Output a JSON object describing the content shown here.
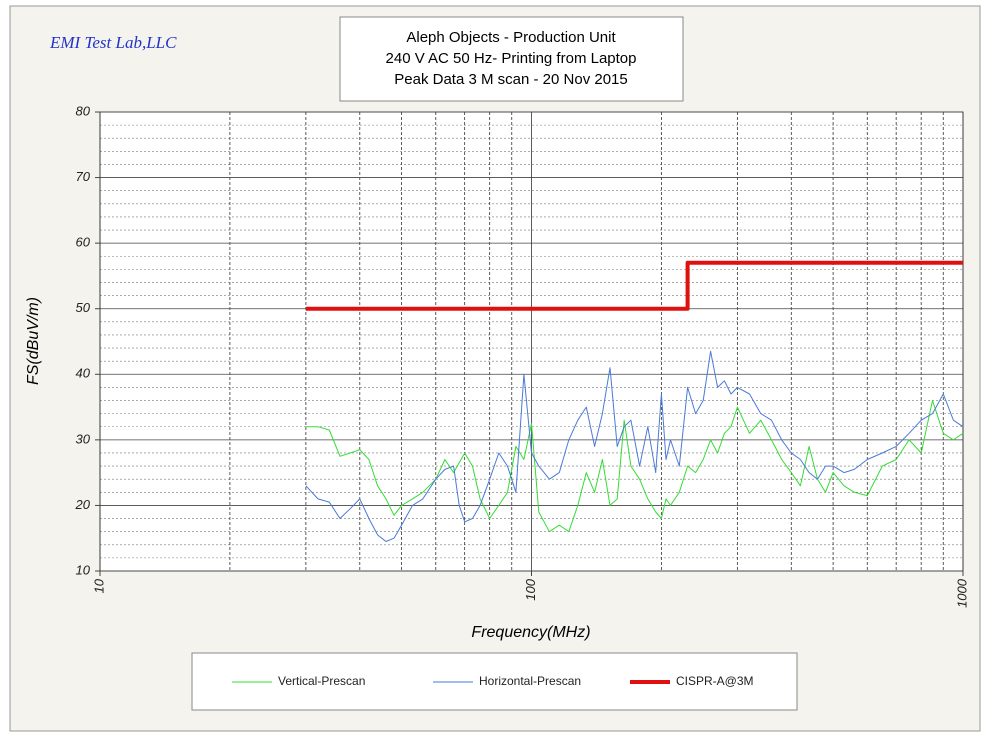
{
  "chart_data": {
    "type": "line",
    "brand": "EMI Test Lab,LLC",
    "title": [
      "Aleph Objects - Production Unit",
      "240 V AC 50 Hz- Printing from Laptop",
      "Peak Data  3 M scan - 20 Nov 2015"
    ],
    "x_label": "Frequency(MHz)",
    "y_label": "FS(dBuV/m)",
    "xscale": "log",
    "xlim": [
      10,
      1000
    ],
    "ylim": [
      10,
      80
    ],
    "xticks": [
      10,
      100,
      1000
    ],
    "yticks": [
      10,
      20,
      30,
      40,
      50,
      60,
      70,
      80
    ],
    "xminor": [
      20,
      30,
      40,
      50,
      60,
      70,
      80,
      90,
      200,
      300,
      400,
      500,
      600,
      700,
      800,
      900
    ],
    "yminor": [
      12,
      14,
      16,
      18,
      22,
      24,
      26,
      28,
      32,
      34,
      36,
      38,
      42,
      44,
      46,
      48,
      52,
      54,
      56,
      58,
      62,
      64,
      66,
      68,
      72,
      74,
      76,
      78
    ],
    "grid": true,
    "legend": "bottom",
    "series": [
      {
        "name": "Vertical-Prescan",
        "color": "#33dd33",
        "width": 1,
        "x": [
          30,
          32,
          34,
          36,
          38,
          40,
          42,
          44,
          46,
          48,
          50,
          53,
          56,
          60,
          63,
          66,
          70,
          73,
          76,
          80,
          84,
          88,
          92,
          96,
          100,
          104,
          110,
          116,
          122,
          128,
          134,
          140,
          146,
          152,
          158,
          164,
          170,
          178,
          186,
          194,
          200,
          205,
          210,
          220,
          230,
          240,
          250,
          260,
          270,
          280,
          290,
          300,
          320,
          340,
          360,
          380,
          400,
          420,
          440,
          460,
          480,
          500,
          530,
          560,
          600,
          650,
          700,
          750,
          800,
          850,
          900,
          950,
          1000
        ],
        "values": [
          32,
          32,
          31.5,
          27.5,
          28,
          28.5,
          27,
          23,
          21,
          18.5,
          20,
          21,
          22,
          24,
          27,
          25,
          28,
          26,
          21,
          18,
          20,
          22,
          29,
          27,
          32.5,
          19,
          16,
          17,
          16,
          20,
          25,
          22,
          27,
          20,
          21,
          33,
          26,
          24,
          21,
          19,
          18,
          21,
          20,
          22,
          26,
          25,
          27,
          30,
          28,
          31,
          32,
          35,
          31,
          33,
          30,
          27,
          25,
          23,
          29,
          24,
          22,
          25,
          23,
          22,
          21.5,
          26,
          27,
          30,
          28,
          36,
          31,
          30,
          31
        ]
      },
      {
        "name": "Horizontal-Prescan",
        "color": "#4a7ad8",
        "width": 1,
        "x": [
          30,
          32,
          34,
          36,
          38,
          40,
          42,
          44,
          46,
          48,
          50,
          53,
          56,
          60,
          63,
          66,
          68,
          70,
          73,
          76,
          80,
          84,
          88,
          92,
          96,
          100,
          104,
          110,
          116,
          122,
          128,
          134,
          140,
          146,
          152,
          158,
          164,
          170,
          178,
          186,
          194,
          200,
          205,
          210,
          220,
          230,
          240,
          250,
          260,
          270,
          280,
          290,
          300,
          320,
          340,
          360,
          380,
          400,
          420,
          440,
          460,
          480,
          500,
          530,
          560,
          600,
          650,
          700,
          750,
          800,
          850,
          900,
          950,
          1000
        ],
        "values": [
          23,
          21,
          20.5,
          18,
          19.5,
          21,
          18,
          15.5,
          14.5,
          15,
          17,
          20,
          21,
          24,
          25.5,
          26,
          20,
          17.5,
          18,
          20,
          24,
          28,
          26,
          22,
          40,
          28,
          26,
          24,
          25,
          30,
          33,
          35,
          29,
          34,
          41,
          29,
          32,
          33,
          26,
          32,
          25,
          37,
          27,
          30,
          26,
          38,
          34,
          36,
          43.5,
          38,
          39,
          37,
          38,
          37,
          34,
          33,
          30,
          28,
          27,
          25,
          24,
          26,
          26,
          25,
          25.5,
          27,
          28,
          29,
          31,
          33,
          34,
          37,
          33,
          32
        ]
      },
      {
        "name": "CISPR-A@3M",
        "color": "#e01010",
        "width": 4,
        "x": [
          30,
          230,
          230,
          1000
        ],
        "values": [
          50,
          50,
          57,
          57
        ]
      }
    ]
  }
}
